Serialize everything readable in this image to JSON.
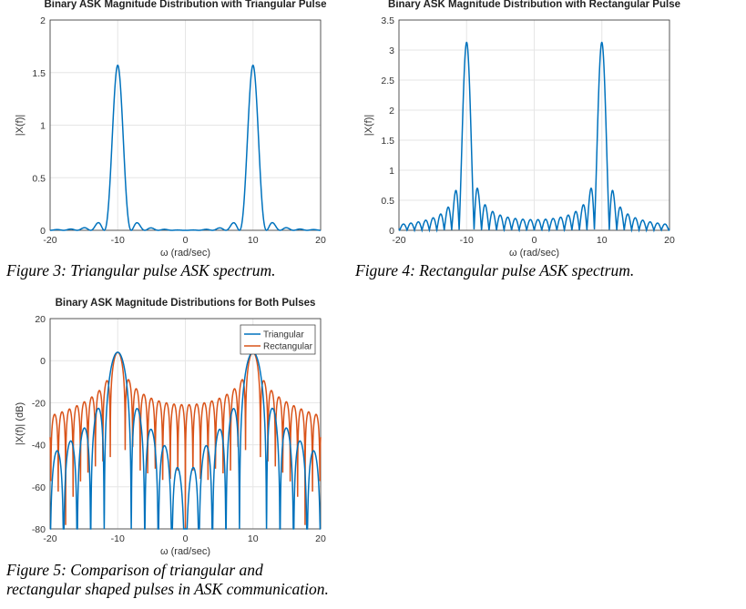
{
  "figures": [
    {
      "caption": "Figure 3: Triangular pulse ASK spectrum."
    },
    {
      "caption": "Figure 4: Rectangular pulse ASK spectrum."
    },
    {
      "caption_line1": "Figure 5: Comparison of triangular and",
      "caption_line2": "rectangular shaped pulses in ASK communication."
    }
  ],
  "chart_data": [
    {
      "type": "line",
      "title": "Binary ASK Magnitude Distribution with Triangular Pulse",
      "xlabel": "ω (rad/sec)",
      "ylabel": "|X(f)|",
      "xlim": [
        -20,
        20
      ],
      "ylim": [
        0,
        2
      ],
      "xticks": [
        -20,
        -10,
        0,
        10,
        20
      ],
      "yticks": [
        0,
        0.5,
        1,
        1.5,
        2
      ],
      "grid": true,
      "scale": "linear",
      "series": [
        {
          "color": "#0072BD",
          "peaks_at": [
            -10,
            10
          ],
          "peak_value": 1.57,
          "null_spacing": 2,
          "shape": "sinc-squared",
          "first_sidelobe": 0.08
        }
      ]
    },
    {
      "type": "line",
      "title": "Binary ASK Magnitude Distribution with Rectangular Pulse",
      "xlabel": "ω (rad/sec)",
      "ylabel": "|X(f)|",
      "xlim": [
        -20,
        20
      ],
      "ylim": [
        0,
        3.5
      ],
      "xticks": [
        -20,
        -10,
        0,
        10,
        20
      ],
      "yticks": [
        0,
        0.5,
        1,
        1.5,
        2,
        2.5,
        3,
        3.5
      ],
      "grid": true,
      "scale": "linear",
      "series": [
        {
          "color": "#0072BD",
          "peaks_at": [
            -10,
            10
          ],
          "peak_value": 3.14,
          "null_spacing": 1.1,
          "shape": "sinc",
          "first_sidelobe": 0.7
        }
      ]
    },
    {
      "type": "line",
      "title": "Binary ASK Magnitude Distributions for Both Pulses",
      "xlabel": "ω (rad/sec)",
      "ylabel": "|X(f)| (dB)",
      "xlim": [
        -20,
        20
      ],
      "ylim": [
        -80,
        20
      ],
      "xticks": [
        -20,
        -10,
        0,
        10,
        20
      ],
      "yticks": [
        -80,
        -60,
        -40,
        -20,
        0,
        20
      ],
      "grid": true,
      "scale": "dB",
      "legend": "top-right",
      "series": [
        {
          "name": "Triangular",
          "color": "#0072BD",
          "peaks_at": [
            -10,
            10
          ],
          "peak_value": 4,
          "null_spacing": 2,
          "shape": "sinc-squared"
        },
        {
          "name": "Rectangular",
          "color": "#D95319",
          "peaks_at": [
            -10,
            10
          ],
          "peak_value": 4,
          "null_spacing": 1.1,
          "shape": "sinc"
        }
      ]
    }
  ]
}
